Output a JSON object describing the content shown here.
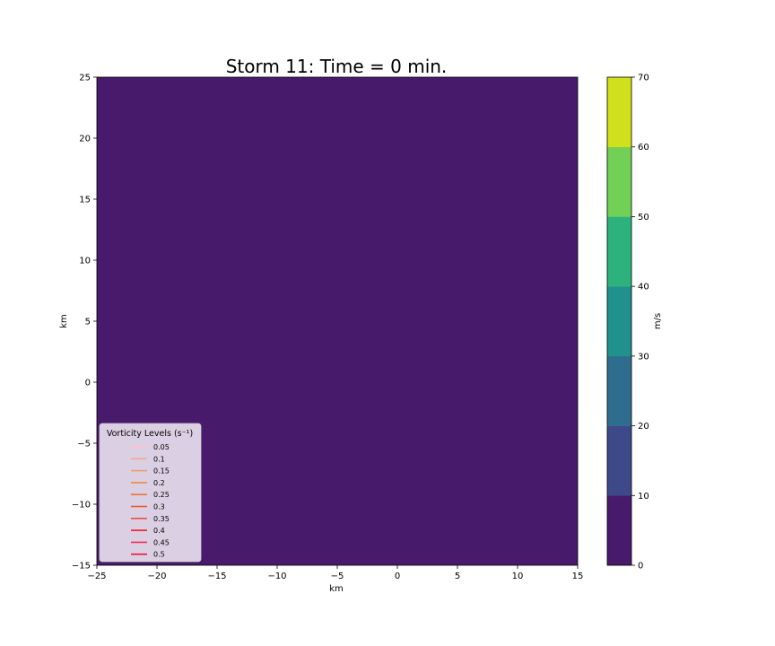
{
  "chart_data": {
    "type": "heatmap",
    "title": "Storm 11: Time = 0 min.",
    "xlabel": "km",
    "ylabel": "km",
    "xlim": [
      -25,
      15
    ],
    "ylim": [
      -15,
      25
    ],
    "xticks": [
      -25,
      -20,
      -15,
      -10,
      -5,
      0,
      5,
      10,
      15
    ],
    "yticks": [
      -15,
      -10,
      -5,
      0,
      5,
      10,
      15,
      20,
      25
    ],
    "xtick_labels": [
      "−25",
      "−20",
      "−15",
      "−10",
      "−5",
      "0",
      "5",
      "10",
      "15"
    ],
    "ytick_labels": [
      "−15",
      "−10",
      "−5",
      "0",
      "5",
      "10",
      "15",
      "20",
      "25"
    ],
    "field_value_bin": [
      0,
      10
    ],
    "colorbar": {
      "label": "m/s",
      "range": [
        0,
        70
      ],
      "ticks": [
        0,
        10,
        20,
        30,
        40,
        50,
        60,
        70
      ],
      "tick_labels": [
        "0",
        "10",
        "20",
        "30",
        "40",
        "50",
        "60",
        "70"
      ],
      "colors": [
        "#481a6c",
        "#3e4989",
        "#2e6d8e",
        "#20918c",
        "#2db27d",
        "#72d056",
        "#d0e11c"
      ]
    },
    "legend": {
      "title": "Vorticity Levels (s⁻¹)",
      "position": "lower-left",
      "entries": [
        {
          "label": "0.05",
          "color": "#ffc0cb"
        },
        {
          "label": "0.1",
          "color": "#f7a590"
        },
        {
          "label": "0.15",
          "color": "#f39a6a"
        },
        {
          "label": "0.2",
          "color": "#f08a3c"
        },
        {
          "label": "0.25",
          "color": "#f0723c"
        },
        {
          "label": "0.3",
          "color": "#f2531e"
        },
        {
          "label": "0.35",
          "color": "#f04a46"
        },
        {
          "label": "0.4",
          "color": "#f0201e"
        },
        {
          "label": "0.45",
          "color": "#f0305a"
        },
        {
          "label": "0.5",
          "color": "#e8133c"
        }
      ]
    }
  }
}
